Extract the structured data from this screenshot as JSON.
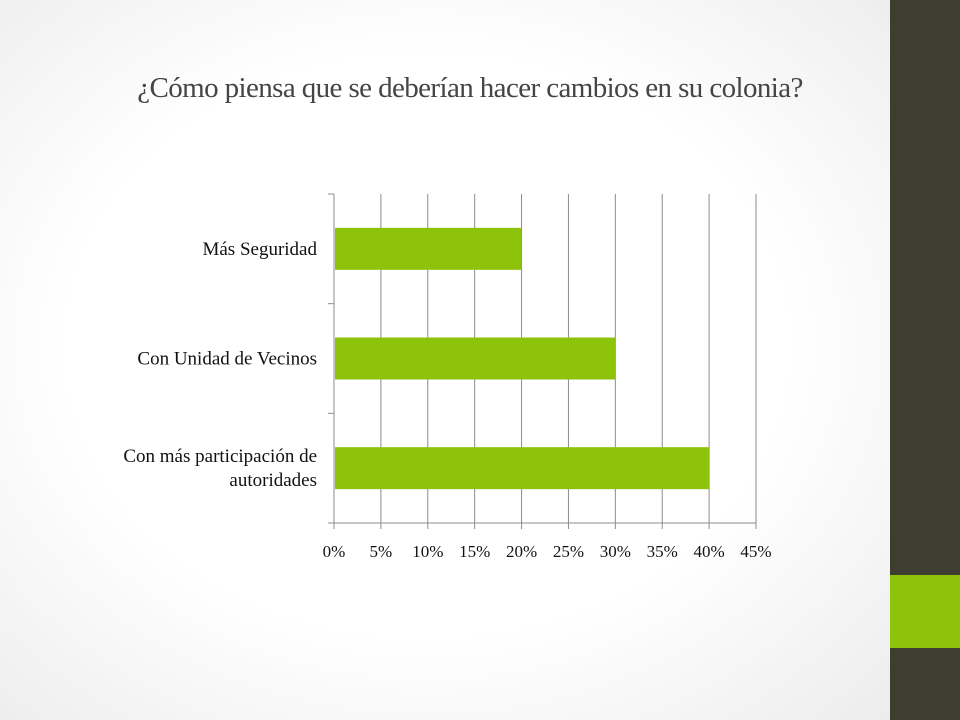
{
  "slide": {
    "title": "¿Cómo piensa que se deberían hacer cambios en su colonia?",
    "colors": {
      "sidebar": "#3e3d2f",
      "accent": "#8dc30a",
      "title": "#454545"
    }
  },
  "chart_data": {
    "type": "bar",
    "orientation": "horizontal",
    "categories": [
      "Más Seguridad",
      "Con Unidad de Vecinos",
      "Con más participación de autoridades"
    ],
    "category_lines": [
      [
        "Más Seguridad"
      ],
      [
        "Con Unidad de Vecinos"
      ],
      [
        "Con más participación de",
        "autoridades"
      ]
    ],
    "values": [
      0.2,
      0.3,
      0.4
    ],
    "xlim": [
      0,
      0.45
    ],
    "x_ticks": [
      "0%",
      "5%",
      "10%",
      "15%",
      "20%",
      "25%",
      "30%",
      "35%",
      "40%",
      "45%"
    ],
    "grid": true,
    "legend": "none",
    "title": "",
    "xlabel": "",
    "ylabel": "",
    "bar_color": "#8dc30a"
  }
}
